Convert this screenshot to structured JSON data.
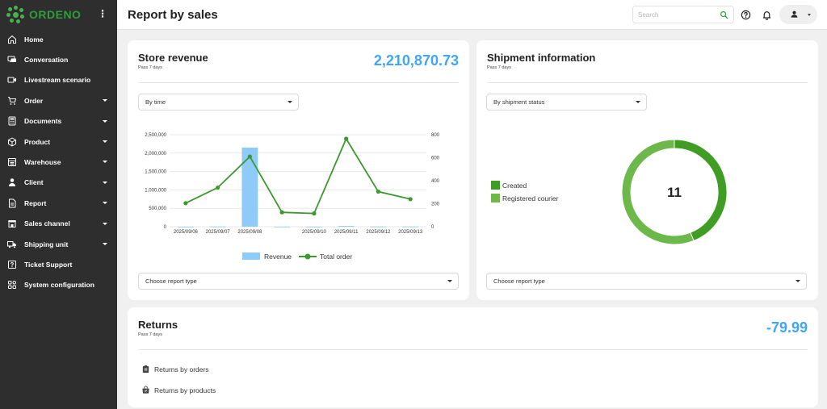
{
  "app": {
    "brand": "ORDENO",
    "page_title": "Report by sales"
  },
  "colors": {
    "sidebar_bg": "#2e2e2e",
    "brand_green": "#2e9e3a",
    "accent_blue": "#42a5f5",
    "bar_blue": "#90caf9",
    "line_green": "#3a9a2e",
    "donut_dark": "#3f9d24",
    "donut_light": "#6cb84a"
  },
  "sidebar": {
    "items": [
      {
        "label": "Home",
        "icon": "home-icon",
        "has_caret": false
      },
      {
        "label": "Conversation",
        "icon": "chat-icon",
        "has_caret": false
      },
      {
        "label": "Livestream scenario",
        "icon": "video-icon",
        "has_caret": false
      },
      {
        "label": "Order",
        "icon": "cart-icon",
        "has_caret": true
      },
      {
        "label": "Documents",
        "icon": "calculator-icon",
        "has_caret": true
      },
      {
        "label": "Product",
        "icon": "box-icon",
        "has_caret": true
      },
      {
        "label": "Warehouse",
        "icon": "warehouse-icon",
        "has_caret": true
      },
      {
        "label": "Client",
        "icon": "person-icon",
        "has_caret": true
      },
      {
        "label": "Report",
        "icon": "report-icon",
        "has_caret": true
      },
      {
        "label": "Sales channel",
        "icon": "store-icon",
        "has_caret": true
      },
      {
        "label": "Shipping unit",
        "icon": "truck-icon",
        "has_caret": true
      },
      {
        "label": "Ticket Support",
        "icon": "help-box-icon",
        "has_caret": false
      },
      {
        "label": "System configuration",
        "icon": "grid-icon",
        "has_caret": false
      }
    ]
  },
  "header": {
    "search_placeholder": "Search"
  },
  "store_revenue": {
    "title": "Store revenue",
    "subtitle": "Pass 7 days",
    "total": "2,210,870.73",
    "time_select": "By time",
    "report_select": "Choose report type"
  },
  "shipment": {
    "title": "Shipment information",
    "subtitle": "Pass 7 days",
    "status_select": "By shipment status",
    "report_select": "Choose report type",
    "center_value": "11",
    "legend": [
      {
        "label": "Created",
        "color": "#3f9d24"
      },
      {
        "label": "Registered courier",
        "color": "#6cb84a"
      }
    ]
  },
  "returns": {
    "title": "Returns",
    "subtitle": "Pass 7 days",
    "total": "-79.99",
    "links": [
      {
        "label": "Returns by orders",
        "icon": "clipboard-icon"
      },
      {
        "label": "Returns by products",
        "icon": "bag-icon"
      }
    ]
  },
  "chart_data": [
    {
      "type": "bar+line",
      "categories": [
        "2025/09/06",
        "2025/09/07",
        "2025/09/08",
        "",
        "2025/09/10",
        "2025/09/11",
        "2025/09/12",
        "2025/09/13"
      ],
      "series": [
        {
          "name": "Revenue",
          "axis": "left",
          "type": "bar",
          "values": [
            0,
            5000,
            2150000,
            0,
            0,
            20000,
            5000,
            5000
          ]
        },
        {
          "name": "Total order",
          "axis": "right",
          "type": "line",
          "values": [
            205,
            340,
            610,
            125,
            115,
            765,
            305,
            240
          ]
        }
      ],
      "y_left": {
        "ticks": [
          "0",
          "500,000",
          "1,000,000",
          "1,500,000",
          "2,000,000",
          "2,500,000"
        ],
        "range": [
          0,
          2500000
        ]
      },
      "y_right": {
        "ticks": [
          "0",
          "200",
          "400",
          "600",
          "800"
        ],
        "range": [
          0,
          800
        ]
      },
      "legend": {
        "placement": "bottom",
        "items": [
          "Revenue",
          "Total order"
        ]
      },
      "grid": true
    },
    {
      "type": "pie",
      "style": "donut",
      "categories": [
        "Created",
        "Registered courier"
      ],
      "values": [
        0.44,
        0.56
      ],
      "center_label": "11"
    }
  ]
}
